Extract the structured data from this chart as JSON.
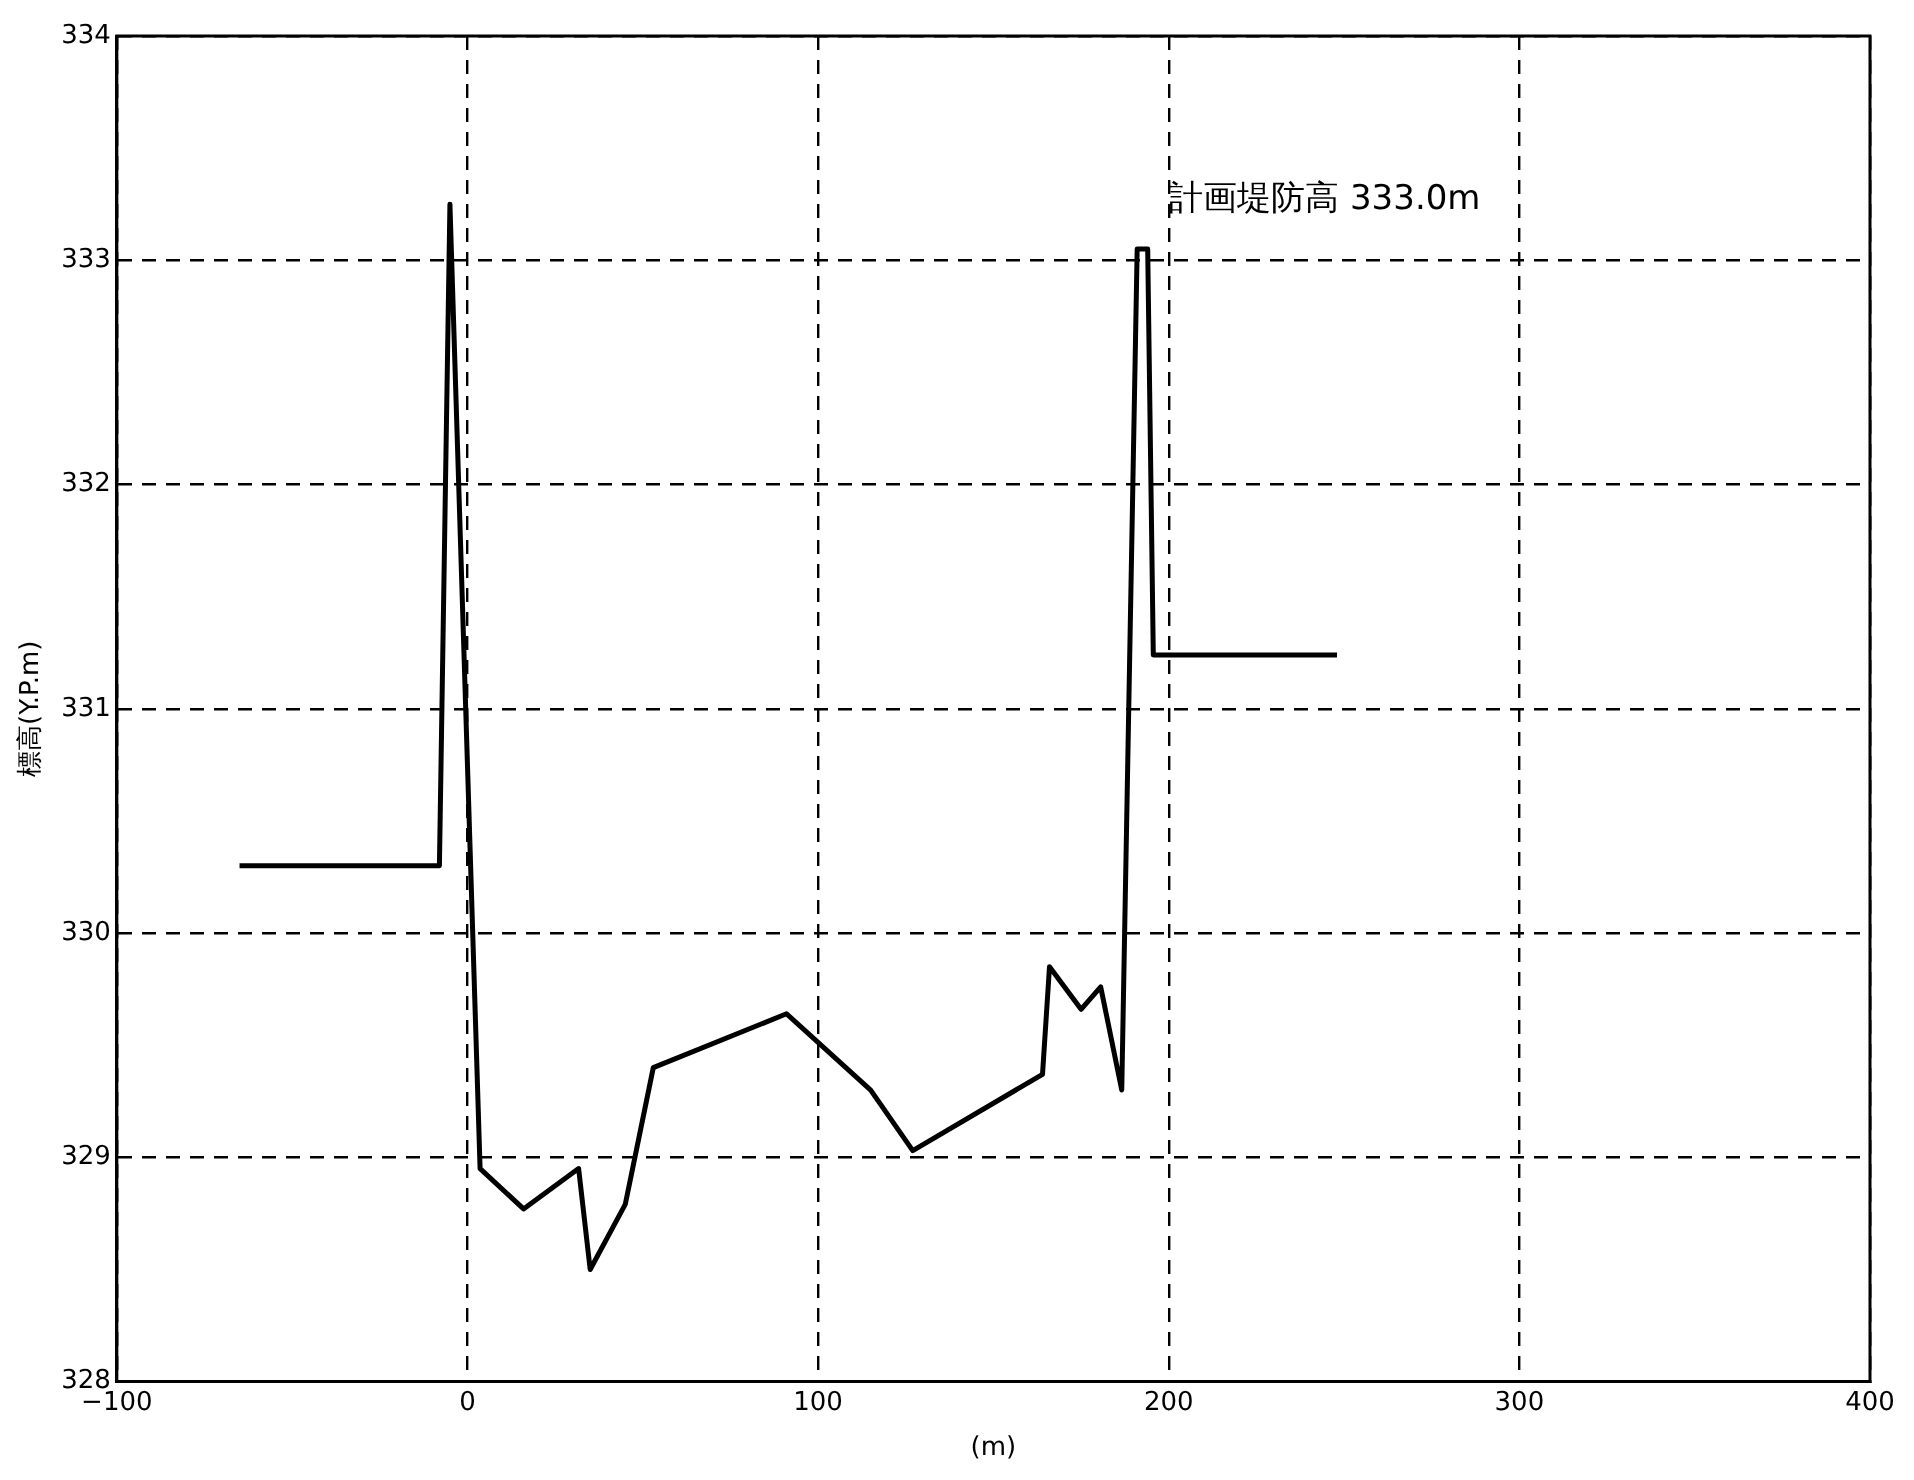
{
  "chart_data": {
    "type": "line",
    "xlabel": "(m)",
    "ylabel": "標高(Y.P.m)",
    "x": [
      -65,
      -8,
      -5,
      3.6,
      16,
      31.7,
      35,
      45,
      53,
      91,
      115,
      127,
      164,
      166,
      175,
      180.6,
      186.6,
      191,
      194,
      195.6,
      248
    ],
    "series": [
      {
        "color": "#000000",
        "values": [
          330.3,
          330.3,
          333.25,
          328.95,
          328.77,
          328.95,
          328.5,
          328.79,
          329.4,
          329.64,
          329.3,
          329.03,
          329.37,
          329.85,
          329.66,
          329.76,
          329.3,
          333.05,
          333.05,
          331.24,
          331.24
        ]
      }
    ],
    "xlim": [
      -100,
      400
    ],
    "xticks": [
      -100,
      0,
      100,
      200,
      300,
      400
    ],
    "ylim": [
      328,
      334
    ],
    "yticks": [
      328,
      329,
      330,
      331,
      332,
      333,
      334
    ],
    "grid": true,
    "legend": false,
    "marker": "none",
    "line_style": "solid",
    "annotations": [
      {
        "text": "計画堤防高 333.0m",
        "x": 191,
        "y": 333.05
      }
    ]
  }
}
